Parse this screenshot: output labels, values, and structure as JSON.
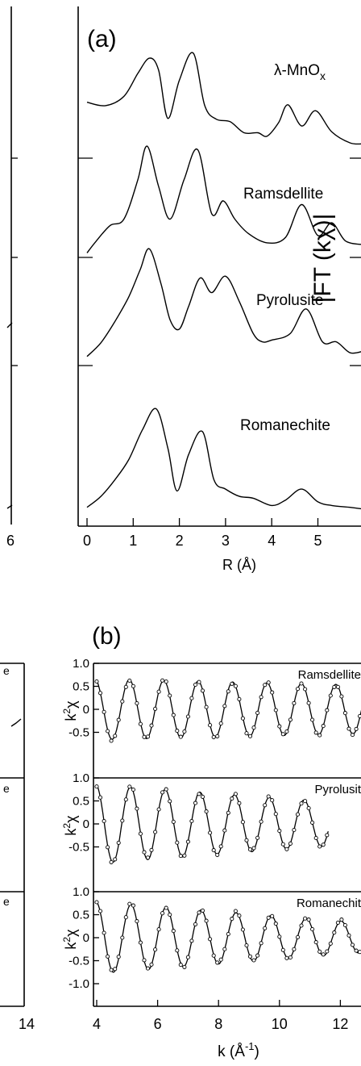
{
  "chart_data": [
    {
      "type": "line",
      "panel_label": "(a)",
      "ylabel": "|FT (kχ)|",
      "xlabel": "R (Å)",
      "xlim": [
        0,
        6
      ],
      "x_ticks": [
        "0",
        "1",
        "2",
        "3",
        "4",
        "5"
      ],
      "left_panel_tick": "6",
      "series": [
        {
          "name": "λ-MnOx",
          "x": [
            0,
            0.4,
            0.8,
            1.1,
            1.35,
            1.55,
            1.75,
            2.0,
            2.3,
            2.55,
            2.8,
            3.1,
            3.4,
            3.7,
            3.9,
            4.15,
            4.35,
            4.65,
            4.95,
            5.3,
            5.7,
            6.0
          ],
          "y": [
            0.66,
            0.62,
            0.73,
            1.0,
            1.18,
            1.04,
            0.47,
            0.92,
            1.24,
            0.62,
            0.46,
            0.43,
            0.3,
            0.3,
            0.26,
            0.42,
            0.63,
            0.38,
            0.56,
            0.31,
            0.18,
            0.17
          ]
        },
        {
          "name": "Ramsdellite",
          "x": [
            0,
            0.2,
            0.5,
            0.8,
            1.1,
            1.3,
            1.55,
            1.8,
            2.1,
            2.4,
            2.7,
            2.95,
            3.2,
            3.5,
            3.9,
            4.3,
            4.65,
            5.0,
            5.3,
            5.6,
            6.0
          ],
          "y": [
            0.05,
            0.18,
            0.35,
            0.42,
            0.85,
            1.22,
            0.78,
            0.42,
            0.85,
            1.18,
            0.48,
            0.62,
            0.42,
            0.26,
            0.16,
            0.22,
            0.58,
            0.24,
            0.38,
            0.18,
            0.14
          ]
        },
        {
          "name": "Pyrolusite",
          "x": [
            0,
            0.3,
            0.6,
            0.9,
            1.15,
            1.35,
            1.6,
            1.8,
            2.0,
            2.2,
            2.45,
            2.7,
            3.0,
            3.3,
            3.6,
            3.8,
            4.0,
            4.4,
            4.75,
            5.1,
            5.4,
            5.7,
            6.0
          ],
          "y": [
            0.1,
            0.25,
            0.48,
            0.75,
            1.05,
            1.28,
            0.9,
            0.5,
            0.4,
            0.65,
            0.96,
            0.8,
            0.98,
            0.7,
            0.35,
            0.26,
            0.28,
            0.35,
            0.62,
            0.26,
            0.26,
            0.14,
            0.16
          ]
        },
        {
          "name": "Romanechite",
          "x": [
            0,
            0.3,
            0.6,
            0.9,
            1.2,
            1.5,
            1.75,
            1.95,
            2.2,
            2.5,
            2.75,
            3.0,
            3.3,
            3.6,
            4.0,
            4.3,
            4.65,
            5.0,
            5.3,
            5.7,
            6.0
          ],
          "y": [
            0.1,
            0.22,
            0.4,
            0.62,
            0.95,
            1.18,
            0.75,
            0.28,
            0.68,
            0.93,
            0.4,
            0.3,
            0.22,
            0.2,
            0.12,
            0.18,
            0.3,
            0.16,
            0.12,
            0.1,
            0.08
          ]
        }
      ],
      "series_labels": [
        "λ-MnO",
        "Ramsdellite",
        "Pyrolusite",
        "Romanechite"
      ],
      "label_subscript": "x"
    },
    {
      "type": "scatter",
      "panel_label": "(b)",
      "xlabel_base": "k (Å",
      "xlabel_exp": "-1",
      "xlabel_close": ")",
      "ylabel_base": "k",
      "ylabel_sup": "2",
      "ylabel_chi": "χ",
      "xlim": [
        4,
        13.2
      ],
      "x_ticks": [
        "4",
        "6",
        "8",
        "10",
        "12"
      ],
      "left_panel_tick": "14",
      "panels": [
        {
          "name": "Ramsdellite",
          "label": "Ramsdellite",
          "y_ticks": [
            "1.0",
            "0.5",
            "0",
            "-0.5"
          ],
          "ylim": [
            -1.0,
            1.0
          ],
          "a0": 0.66,
          "a1": -0.015,
          "period": 1.13,
          "phase": 1.9,
          "x_end": 13.2
        },
        {
          "name": "Pyrolusite",
          "label": "Pyrolusit",
          "y_ticks": [
            "1.0",
            "0.5",
            "0",
            "-0.5"
          ],
          "ylim": [
            -1.0,
            1.0
          ],
          "a0": 0.86,
          "a1": -0.05,
          "period": 1.14,
          "phase": 1.75,
          "x_end": 11.6
        },
        {
          "name": "Romanechite",
          "label": "Romanechit",
          "y_ticks": [
            "1.0",
            "0.5",
            "0",
            "-0.5",
            "-1.0"
          ],
          "ylim": [
            -1.0,
            1.0
          ],
          "a0": 0.78,
          "a1": -0.052,
          "period": 1.15,
          "phase": 1.7,
          "x_end": 13.2
        }
      ],
      "left_strip_labels": [
        "e",
        "e",
        "e"
      ]
    }
  ]
}
